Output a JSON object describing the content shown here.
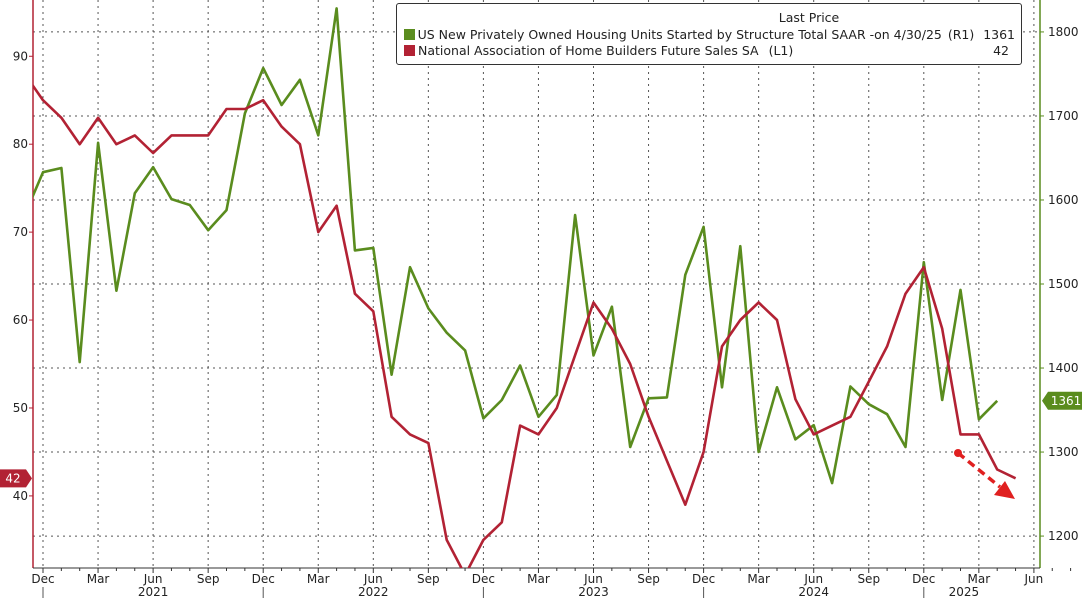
{
  "chart_data": {
    "type": "line",
    "title": "",
    "legend_header": "Last Price",
    "legend_placement": "top-right",
    "x_start": "2020-11",
    "x_tick_labels": [
      "Dec",
      "Mar",
      "Jun",
      "Sep",
      "Dec",
      "Mar",
      "Jun",
      "Sep",
      "Dec",
      "Mar",
      "Jun",
      "Sep",
      "Dec",
      "Mar",
      "Jun",
      "Sep",
      "Dec",
      "Mar",
      "Jun"
    ],
    "x_year_labels": [
      "2021",
      "2022",
      "2023",
      "2024",
      "2025"
    ],
    "left_axis": {
      "ylim": [
        31.8,
        96.4
      ],
      "ticks": [
        40,
        50,
        60,
        70,
        80,
        90
      ]
    },
    "right_axis": {
      "ylim": [
        1162,
        1838
      ],
      "ticks": [
        1200,
        1300,
        1400,
        1500,
        1600,
        1700,
        1800
      ]
    },
    "series": [
      {
        "name": "US New Privately Owned Housing Units Started by Structure Total SAAR -",
        "date_note": "on 4/30/25",
        "axis_label": "(R1)",
        "axis": "right",
        "last": "1361",
        "color": "#5a8c1e",
        "values": [
          1582,
          1633,
          1638,
          1407,
          1668,
          1492,
          1608,
          1639,
          1601,
          1594,
          1564,
          1588,
          1703,
          1757,
          1713,
          1743,
          1677,
          1828,
          1540,
          1543,
          1392,
          1520,
          1471,
          1442,
          1421,
          1340,
          1362,
          1403,
          1342,
          1368,
          1582,
          1415,
          1473,
          1306,
          1364,
          1365,
          1511,
          1568,
          1377,
          1545,
          1300,
          1377,
          1315,
          1332,
          1263,
          1378,
          1357,
          1345,
          1306,
          1526,
          1362,
          1493,
          1339,
          1361
        ]
      },
      {
        "name": "National Association of Home Builders Future Sales SA",
        "axis_label": "(L1)",
        "axis": "left",
        "last": "42",
        "color": "#b22234",
        "values": [
          88,
          85,
          83,
          80,
          83,
          80,
          81,
          79,
          81,
          81,
          81,
          84,
          84,
          85,
          82,
          80,
          70,
          73,
          63,
          61,
          49,
          47,
          46,
          35,
          31,
          35,
          37,
          48,
          47,
          50,
          56,
          62,
          59,
          55,
          49,
          44,
          39,
          45,
          57,
          60,
          62,
          60,
          51,
          47,
          48,
          49,
          53,
          57,
          63,
          66,
          59,
          47,
          47,
          43,
          42
        ]
      }
    ],
    "annotations": [
      {
        "type": "dashed-arrow",
        "color": "#e02020",
        "direction": "down-right"
      }
    ]
  }
}
